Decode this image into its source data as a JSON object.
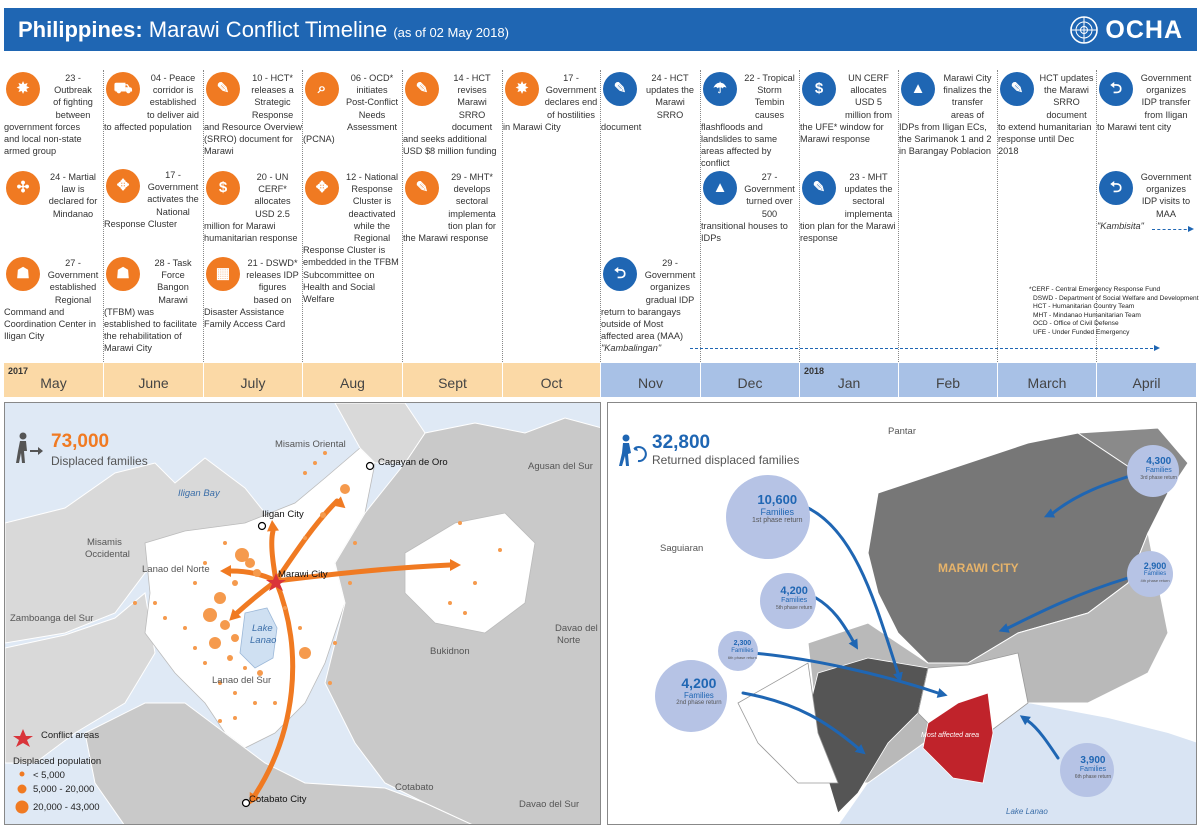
{
  "header": {
    "title_bold": "Philippines:",
    "title_rest": " Marawi Conflict Timeline ",
    "date": "(as of 02 May 2018)",
    "org": "OCHA"
  },
  "months": [
    {
      "label": "May",
      "year": "2017",
      "tone": "orange"
    },
    {
      "label": "June",
      "year": "",
      "tone": "orange"
    },
    {
      "label": "July",
      "year": "",
      "tone": "orange"
    },
    {
      "label": "Aug",
      "year": "",
      "tone": "orange"
    },
    {
      "label": "Sept",
      "year": "",
      "tone": "orange"
    },
    {
      "label": "Oct",
      "year": "",
      "tone": "orange"
    },
    {
      "label": "Nov",
      "year": "",
      "tone": "blue"
    },
    {
      "label": "Dec",
      "year": "",
      "tone": "blue"
    },
    {
      "label": "Jan",
      "year": "2018",
      "tone": "blue"
    },
    {
      "label": "Feb",
      "year": "",
      "tone": "blue"
    },
    {
      "label": "March",
      "year": "",
      "tone": "blue"
    },
    {
      "label": "April",
      "year": "",
      "tone": "blue"
    }
  ],
  "events": {
    "may1": {
      "icon": "explosion-icon",
      "head": [
        "23 -",
        "Outbreak",
        "of fighting",
        "between"
      ],
      "tail": [
        "government forces",
        "and local non-state",
        "armed group"
      ]
    },
    "may2": {
      "icon": "martial-law-icon",
      "head": [
        "24 - Martial",
        "law is",
        "declared for",
        "Mindanao"
      ],
      "tail": []
    },
    "may3": {
      "icon": "coordination-icon",
      "head": [
        "27 -",
        "Government",
        "established",
        "Regional"
      ],
      "tail": [
        "Command and",
        "Coordination Center in",
        "Iligan City"
      ]
    },
    "jun1": {
      "icon": "truck-icon",
      "head": [
        "04 - Peace",
        "corridor is",
        "established",
        "to deliver aid"
      ],
      "tail": [
        "to affected population"
      ]
    },
    "jun2": {
      "icon": "cluster-icon",
      "head": [
        "17 -",
        "Government",
        "activates the",
        "National"
      ],
      "tail": [
        "Response Cluster"
      ]
    },
    "jun3": {
      "icon": "task-force-icon",
      "head": [
        "28 - Task",
        "Force",
        "Bangon",
        "Marawi"
      ],
      "tail": [
        "(TFBM) was",
        "established to facilitate",
        "the rehabilitation of",
        "Marawi City"
      ]
    },
    "jul1": {
      "icon": "document-icon",
      "head": [
        "10 - HCT*",
        "releases a",
        "Strategic",
        "Response"
      ],
      "tail": [
        "and Resource Overview",
        "(SRRO) document for",
        "Marawi"
      ]
    },
    "jul2": {
      "icon": "money-bag-icon",
      "head": [
        "20 - UN",
        "CERF*",
        "allocates",
        "USD 2.5"
      ],
      "tail": [
        "million for Marawi",
        "humanitarian response"
      ]
    },
    "jul3": {
      "icon": "chart-icon",
      "head": [
        "21 - DSWD*",
        "releases IDP",
        "figures",
        "based on"
      ],
      "tail": [
        "Disaster Assistance",
        "Family Access Card"
      ]
    },
    "aug1": {
      "icon": "assessment-icon",
      "head": [
        "06 - OCD*",
        "initiates",
        "Post-Conflict",
        "Needs",
        "Assessment"
      ],
      "tail": [
        "(PCNA)"
      ]
    },
    "aug2": {
      "icon": "cluster-icon",
      "head": [
        "12 - National",
        "Response",
        "Cluster is",
        "deactivated",
        "while the",
        "Regional"
      ],
      "tail": [
        "Response Cluster is",
        "embedded in the TFBM",
        "Subcommittee on",
        "Health and Social",
        "Welfare"
      ]
    },
    "sep1": {
      "icon": "document-icon",
      "head": [
        "14 - HCT",
        "revises",
        "Marawi",
        "SRRO",
        "document"
      ],
      "tail": [
        "and seeks additional",
        "USD $8 million funding"
      ]
    },
    "sep2": {
      "icon": "document-icon",
      "head": [
        "29 - MHT*",
        "develops",
        "sectoral",
        "implementa",
        "tion plan for"
      ],
      "tail": [
        "the Marawi response"
      ]
    },
    "oct1": {
      "icon": "explosion-icon",
      "head": [
        "17 -",
        "Government",
        "declares end",
        "of hostilities"
      ],
      "tail": [
        "in Marawi City"
      ]
    },
    "nov1": {
      "icon": "document-icon",
      "head": [
        "24 - HCT",
        "updates the",
        "Marawi",
        "SRRO"
      ],
      "tail": [
        "document"
      ]
    },
    "nov2": {
      "icon": "return-icon",
      "head": [
        "29 -",
        "Government",
        "organizes",
        "gradual IDP"
      ],
      "tail": [
        "return to barangays",
        "outside of Most",
        "affected area (MAA)"
      ],
      "italic": "\"Kambalingan\""
    },
    "dec1": {
      "icon": "storm-icon",
      "head": [
        "22 - Tropical",
        "Storm",
        "Tembin",
        "causes"
      ],
      "tail": [
        "flashfloods and",
        "landslides to same",
        "areas affected by",
        "conflict"
      ]
    },
    "dec2": {
      "icon": "tent-icon",
      "head": [
        "27 -",
        "Government",
        "turned over",
        "500"
      ],
      "tail": [
        "transitional houses to",
        "IDPs"
      ]
    },
    "jan1": {
      "icon": "money-bag-icon",
      "head": [
        "UN CERF",
        "allocates",
        "USD 5",
        "million from"
      ],
      "tail": [
        "the UFE* window for",
        "Marawi response"
      ]
    },
    "jan2": {
      "icon": "document-icon",
      "head": [
        "23 - MHT",
        "updates the",
        "sectoral",
        "implementa"
      ],
      "tail": [
        "tion plan for the Marawi",
        "response"
      ]
    },
    "feb1": {
      "icon": "tent-icon",
      "head": [
        "Marawi City",
        "finalizes the",
        "transfer",
        "areas of"
      ],
      "tail": [
        "IDPs from Iligan ECs,",
        "the Sarimanok 1 and 2",
        "in Barangay Poblacion"
      ]
    },
    "mar1": {
      "icon": "document-icon",
      "head": [
        "HCT updates",
        "the Marawi",
        "SRRO",
        "document"
      ],
      "tail": [
        "to extend humanitarian",
        "response until Dec",
        "2018"
      ]
    },
    "apr1": {
      "icon": "return-icon",
      "head": [
        "Government",
        "organizes",
        "IDP transfer",
        "from Iligan"
      ],
      "tail": [
        "to Marawi tent city"
      ]
    },
    "apr2": {
      "icon": "return-icon",
      "head": [
        "Government",
        "organizes",
        "IDP visits to",
        "MAA"
      ],
      "tail": [],
      "italic": "\"Kambisita\""
    }
  },
  "abbreviations": [
    "*CERF - Central Emergency Response Fund",
    "DSWD - Department of Social Welfare and Development",
    "HCT - Humanitarian Country Team",
    "MHT - Mindanao Humanitarian Team",
    "OCD - Office of Civil Defense",
    "UFE - Under Funded Emergency"
  ],
  "left_map": {
    "displaced_number": "73,000",
    "displaced_label": "Displaced families",
    "places": {
      "misamis_oriental": "Misamis Oriental",
      "cagayan": "Cagayan de Oro",
      "agusan": "Agusan del Sur",
      "iligan_bay": "Iligan Bay",
      "iligan_city": "Iligan City",
      "misamis_occ1": "Misamis",
      "misamis_occ2": "Occidental",
      "lanao_norte": "Lanao del Norte",
      "marawi": "Marawi City",
      "zamboanga": "Zamboanga del Sur",
      "lake1": "Lake",
      "lake2": "Lanao",
      "davao_norte1": "Davao del",
      "davao_norte2": "Norte",
      "bukidnon": "Bukidnon",
      "lanao_sur": "Lanao del Sur",
      "cotabato_city": "Cotabato City",
      "cotabato": "Cotabato",
      "davao_sur": "Davao del Sur"
    },
    "legend": {
      "conflict": "Conflict areas",
      "pop_title": "Displaced population",
      "small": "< 5,000",
      "medium": "5,000 - 20,000",
      "large": "20,000 - 43,000"
    },
    "colors": {
      "accent": "#f07a22",
      "conflict": "#d9343a"
    }
  },
  "right_map": {
    "returned_number": "32,800",
    "returned_label": "Returned displaced families",
    "places": {
      "pantar": "Pantar",
      "saguiaran": "Saguiaran",
      "marawi": "MARAWI CITY",
      "maa": "Most affected area",
      "lake": "Lake Lanao"
    },
    "bubbles": [
      {
        "key": "b1",
        "num": "10,600",
        "fam": "Families",
        "phase": "1st phase return"
      },
      {
        "key": "b2",
        "num": "4,300",
        "fam": "Families",
        "phase": "3rd phase return"
      },
      {
        "key": "b3",
        "num": "4,200",
        "fam": "Families",
        "phase": "5th phase return"
      },
      {
        "key": "b4",
        "num": "2,900",
        "fam": "Families",
        "phase": "4th phase return"
      },
      {
        "key": "b5",
        "num": "2,300",
        "fam": "Families",
        "phase": "6th phase return"
      },
      {
        "key": "b6",
        "num": "4,200",
        "fam": "Families",
        "phase": "2nd phase return"
      },
      {
        "key": "b7",
        "num": "3,900",
        "fam": "Families",
        "phase": "6th phase return"
      }
    ],
    "colors": {
      "accent": "#1f66b3",
      "maa": "#c0232b"
    }
  }
}
